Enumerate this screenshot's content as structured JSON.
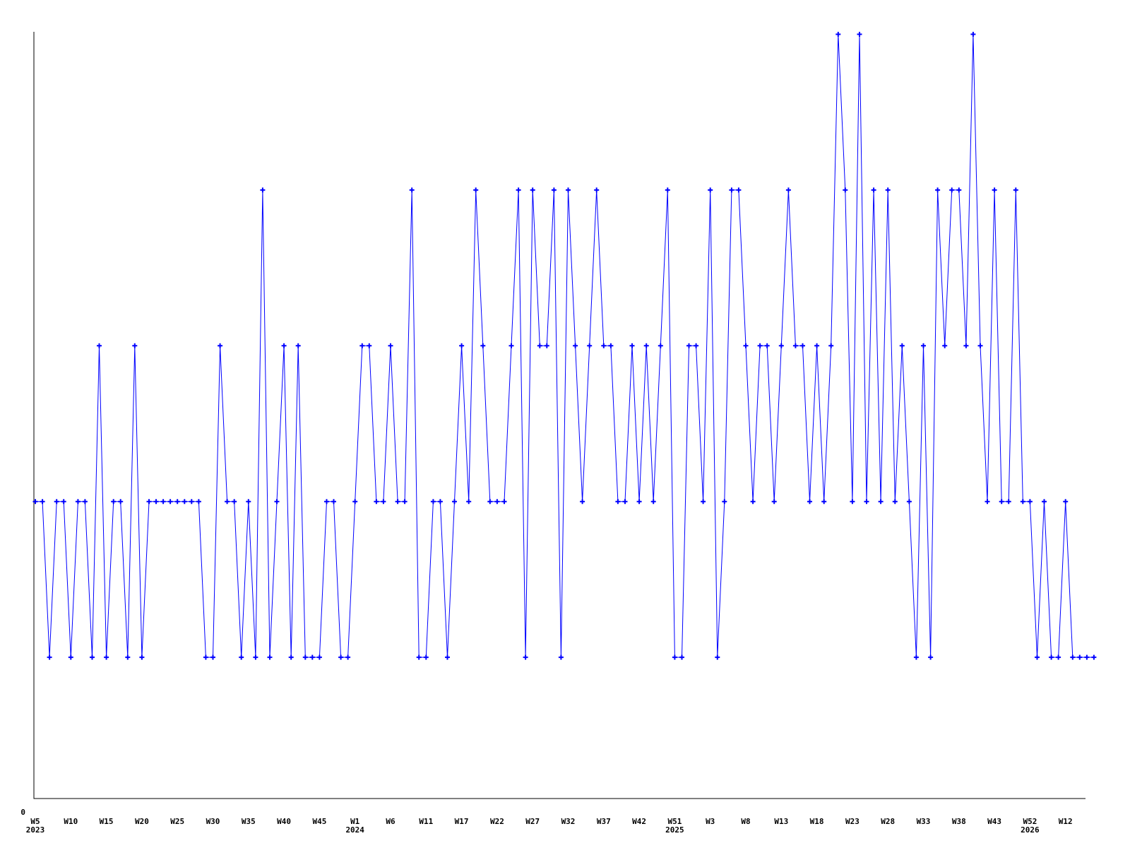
{
  "page": {
    "background_color": "#ffffff",
    "title": ""
  },
  "chart_data": {
    "type": "line",
    "title": "",
    "xlabel": "",
    "ylabel": "",
    "grid": false,
    "legend": false,
    "axis_color": "#000000",
    "y_zero_tick_label": "0",
    "ylim": [
      0,
      5.5
    ],
    "x_ticks_every_n_points": 5,
    "x_ticks": [
      {
        "week": "W5",
        "year": "2023"
      },
      {
        "week": "W10"
      },
      {
        "week": "W15"
      },
      {
        "week": "W20"
      },
      {
        "week": "W25"
      },
      {
        "week": "W30"
      },
      {
        "week": "W35"
      },
      {
        "week": "W40"
      },
      {
        "week": "W45"
      },
      {
        "week": "W1",
        "year": "2024"
      },
      {
        "week": "W6"
      },
      {
        "week": "W11"
      },
      {
        "week": "W17"
      },
      {
        "week": "W22"
      },
      {
        "week": "W27"
      },
      {
        "week": "W32"
      },
      {
        "week": "W37"
      },
      {
        "week": "W42"
      },
      {
        "week": "W51",
        "year": "2025"
      },
      {
        "week": "W3"
      },
      {
        "week": "W8"
      },
      {
        "week": "W13"
      },
      {
        "week": "W18"
      },
      {
        "week": "W23"
      },
      {
        "week": "W28"
      },
      {
        "week": "W33"
      },
      {
        "week": "W38"
      },
      {
        "week": "W43"
      },
      {
        "week": "W52",
        "year": "2026"
      },
      {
        "week": "W12"
      }
    ],
    "series": [
      {
        "name": "weekly-values",
        "color": "#0000ff",
        "marker": "plus",
        "values": [
          2,
          2,
          1,
          2,
          2,
          1,
          2,
          2,
          1,
          3,
          1,
          2,
          2,
          1,
          3,
          1,
          2,
          2,
          2,
          2,
          2,
          2,
          2,
          2,
          1,
          1,
          3,
          2,
          2,
          1,
          2,
          1,
          4,
          1,
          2,
          3,
          1,
          3,
          1,
          1,
          1,
          2,
          2,
          1,
          1,
          2,
          3,
          3,
          2,
          2,
          3,
          2,
          2,
          4,
          1,
          1,
          2,
          2,
          1,
          2,
          3,
          2,
          4,
          3,
          2,
          2,
          2,
          3,
          4,
          1,
          4,
          3,
          3,
          4,
          1,
          4,
          3,
          2,
          3,
          4,
          3,
          3,
          2,
          2,
          3,
          2,
          3,
          2,
          3,
          4,
          1,
          1,
          3,
          3,
          2,
          4,
          1,
          2,
          4,
          4,
          3,
          2,
          3,
          3,
          2,
          3,
          4,
          3,
          3,
          2,
          3,
          2,
          3,
          5,
          4,
          2,
          5,
          2,
          4,
          2,
          4,
          2,
          3,
          2,
          1,
          3,
          1,
          4,
          3,
          4,
          4,
          3,
          5,
          3,
          2,
          4,
          2,
          2,
          4,
          2,
          2,
          1,
          2,
          1,
          1,
          2,
          1,
          1,
          1,
          1
        ]
      }
    ]
  }
}
